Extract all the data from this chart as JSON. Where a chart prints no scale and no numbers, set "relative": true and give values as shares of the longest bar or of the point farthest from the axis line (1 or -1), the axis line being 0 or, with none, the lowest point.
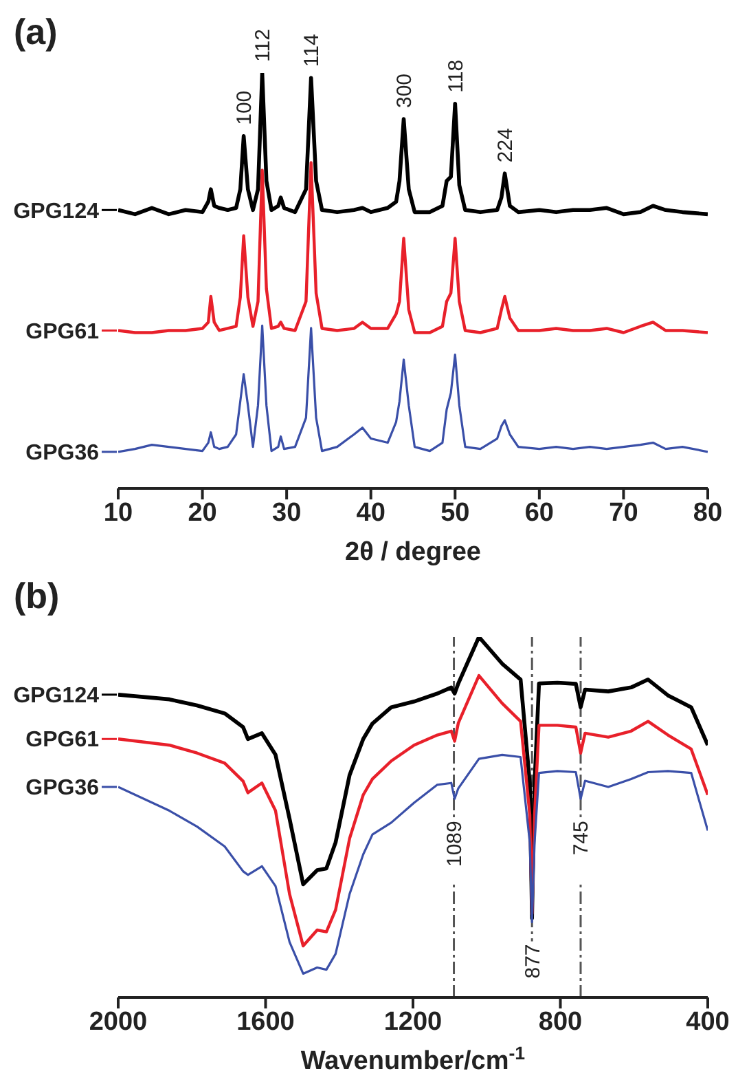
{
  "chart_data": [
    {
      "type": "line",
      "title": "(a)",
      "legend": "left",
      "xlabel": "2θ / degree",
      "relative": true,
      "xlim": [
        10,
        80
      ],
      "xticks": [
        10,
        20,
        30,
        40,
        50,
        60,
        70,
        80
      ],
      "x": [
        10,
        12,
        14,
        16,
        18,
        20,
        20.7,
        21,
        21.4,
        22,
        23,
        24,
        24.5,
        24.9,
        25.4,
        26,
        26.6,
        27.1,
        27.6,
        28.2,
        29,
        29.3,
        29.7,
        31,
        32.3,
        32.9,
        33.5,
        34.2,
        36,
        38,
        39,
        40,
        42,
        43,
        43.4,
        43.9,
        44.5,
        45.2,
        47,
        48.5,
        49,
        49.5,
        50,
        50.5,
        51.2,
        53,
        55,
        55.5,
        55.9,
        56.5,
        57.5,
        60,
        62,
        64,
        66,
        68,
        70,
        72,
        73.5,
        75,
        77,
        80
      ],
      "series": [
        {
          "name": "GPG124",
          "color": "#000000",
          "values": [
            0.67,
            0.66,
            0.675,
            0.66,
            0.67,
            0.665,
            0.69,
            0.72,
            0.68,
            0.675,
            0.67,
            0.675,
            0.72,
            0.848,
            0.72,
            0.67,
            0.72,
            1.0,
            0.74,
            0.67,
            0.68,
            0.7,
            0.675,
            0.665,
            0.72,
            0.988,
            0.74,
            0.67,
            0.665,
            0.67,
            0.675,
            0.665,
            0.675,
            0.69,
            0.74,
            0.889,
            0.72,
            0.665,
            0.665,
            0.68,
            0.74,
            0.75,
            0.926,
            0.73,
            0.67,
            0.665,
            0.67,
            0.7,
            0.758,
            0.68,
            0.665,
            0.67,
            0.665,
            0.67,
            0.67,
            0.675,
            0.66,
            0.665,
            0.68,
            0.67,
            0.665,
            0.66
          ]
        },
        {
          "name": "GPG61",
          "color": "#e8202a",
          "values": [
            0.38,
            0.375,
            0.375,
            0.38,
            0.38,
            0.385,
            0.4,
            0.462,
            0.4,
            0.38,
            0.385,
            0.39,
            0.46,
            0.608,
            0.46,
            0.39,
            0.45,
            0.766,
            0.48,
            0.385,
            0.39,
            0.4,
            0.385,
            0.38,
            0.45,
            0.784,
            0.47,
            0.385,
            0.38,
            0.385,
            0.4,
            0.385,
            0.385,
            0.42,
            0.45,
            0.602,
            0.43,
            0.375,
            0.375,
            0.39,
            0.45,
            0.47,
            0.602,
            0.45,
            0.38,
            0.375,
            0.385,
            0.43,
            0.462,
            0.41,
            0.38,
            0.38,
            0.385,
            0.38,
            0.38,
            0.385,
            0.375,
            0.39,
            0.4,
            0.38,
            0.38,
            0.375
          ]
        },
        {
          "name": "GPG36",
          "color": "#3a4fa8",
          "values": [
            0.088,
            0.095,
            0.105,
            0.1,
            0.095,
            0.09,
            0.11,
            0.135,
            0.1,
            0.095,
            0.1,
            0.13,
            0.21,
            0.275,
            0.2,
            0.1,
            0.2,
            0.392,
            0.2,
            0.09,
            0.1,
            0.125,
            0.095,
            0.1,
            0.17,
            0.386,
            0.17,
            0.09,
            0.1,
            0.13,
            0.146,
            0.12,
            0.11,
            0.16,
            0.21,
            0.31,
            0.2,
            0.1,
            0.09,
            0.11,
            0.19,
            0.23,
            0.322,
            0.2,
            0.1,
            0.095,
            0.12,
            0.15,
            0.164,
            0.13,
            0.1,
            0.095,
            0.1,
            0.095,
            0.1,
            0.095,
            0.1,
            0.105,
            0.11,
            0.095,
            0.1,
            0.088
          ]
        }
      ],
      "annotations": [
        {
          "text": "100",
          "x": 24.9,
          "y": 0.848
        },
        {
          "text": "112",
          "x": 27.1,
          "y": 1.0
        },
        {
          "text": "114",
          "x": 32.9,
          "y": 0.988
        },
        {
          "text": "300",
          "x": 43.9,
          "y": 0.889
        },
        {
          "text": "118",
          "x": 50,
          "y": 0.926
        },
        {
          "text": "224",
          "x": 55.9,
          "y": 0.758
        }
      ]
    },
    {
      "type": "line",
      "title": "(b)",
      "legend": "left",
      "xlabel": "Wavenumber/cm$^{-1}$",
      "relative": true,
      "xlim": [
        2000,
        400
      ],
      "xticks": [
        2000,
        1600,
        1200,
        800,
        400
      ],
      "x": [
        2000,
        1861,
        1786,
        1711,
        1661,
        1648,
        1610,
        1573,
        1535,
        1498,
        1460,
        1435,
        1410,
        1372,
        1335,
        1310,
        1259,
        1197,
        1134,
        1096,
        1087,
        1077,
        1021,
        958,
        908,
        883,
        877,
        870,
        858,
        808,
        758,
        745,
        733,
        670,
        608,
        562,
        508,
        445,
        400
      ],
      "series": [
        {
          "name": "GPG124",
          "color": "#000000",
          "values": [
            0.84,
            0.827,
            0.81,
            0.788,
            0.75,
            0.717,
            0.733,
            0.673,
            0.496,
            0.314,
            0.353,
            0.358,
            0.43,
            0.617,
            0.717,
            0.76,
            0.805,
            0.821,
            0.843,
            0.86,
            0.843,
            0.871,
            1.0,
            0.926,
            0.882,
            0.595,
            0.22,
            0.595,
            0.871,
            0.873,
            0.87,
            0.805,
            0.854,
            0.849,
            0.86,
            0.882,
            0.838,
            0.805,
            0.7
          ]
        },
        {
          "name": "GPG61",
          "color": "#e8202a",
          "values": [
            0.717,
            0.7,
            0.678,
            0.65,
            0.6,
            0.568,
            0.595,
            0.518,
            0.287,
            0.143,
            0.187,
            0.182,
            0.243,
            0.441,
            0.562,
            0.606,
            0.656,
            0.7,
            0.728,
            0.739,
            0.711,
            0.761,
            0.893,
            0.816,
            0.766,
            0.507,
            0.232,
            0.507,
            0.755,
            0.755,
            0.75,
            0.678,
            0.733,
            0.722,
            0.739,
            0.766,
            0.728,
            0.689,
            0.562
          ]
        },
        {
          "name": "GPG36",
          "color": "#3a4fa8",
          "values": [
            0.584,
            0.518,
            0.474,
            0.419,
            0.35,
            0.34,
            0.364,
            0.309,
            0.154,
            0.066,
            0.083,
            0.077,
            0.121,
            0.287,
            0.397,
            0.452,
            0.485,
            0.54,
            0.59,
            0.595,
            0.551,
            0.58,
            0.662,
            0.673,
            0.667,
            0.43,
            0.209,
            0.43,
            0.623,
            0.628,
            0.625,
            0.551,
            0.601,
            0.584,
            0.606,
            0.625,
            0.628,
            0.623,
            0.463
          ]
        }
      ],
      "ref_lines": [
        {
          "axis": "x",
          "value": 1089,
          "label": "1089",
          "color": "#555555",
          "line_style": "dashed"
        },
        {
          "axis": "x",
          "value": 877,
          "label": "877",
          "color": "#555555",
          "line_style": "dashed"
        },
        {
          "axis": "x",
          "value": 745,
          "label": "745",
          "color": "#555555",
          "line_style": "dashed"
        }
      ]
    }
  ]
}
